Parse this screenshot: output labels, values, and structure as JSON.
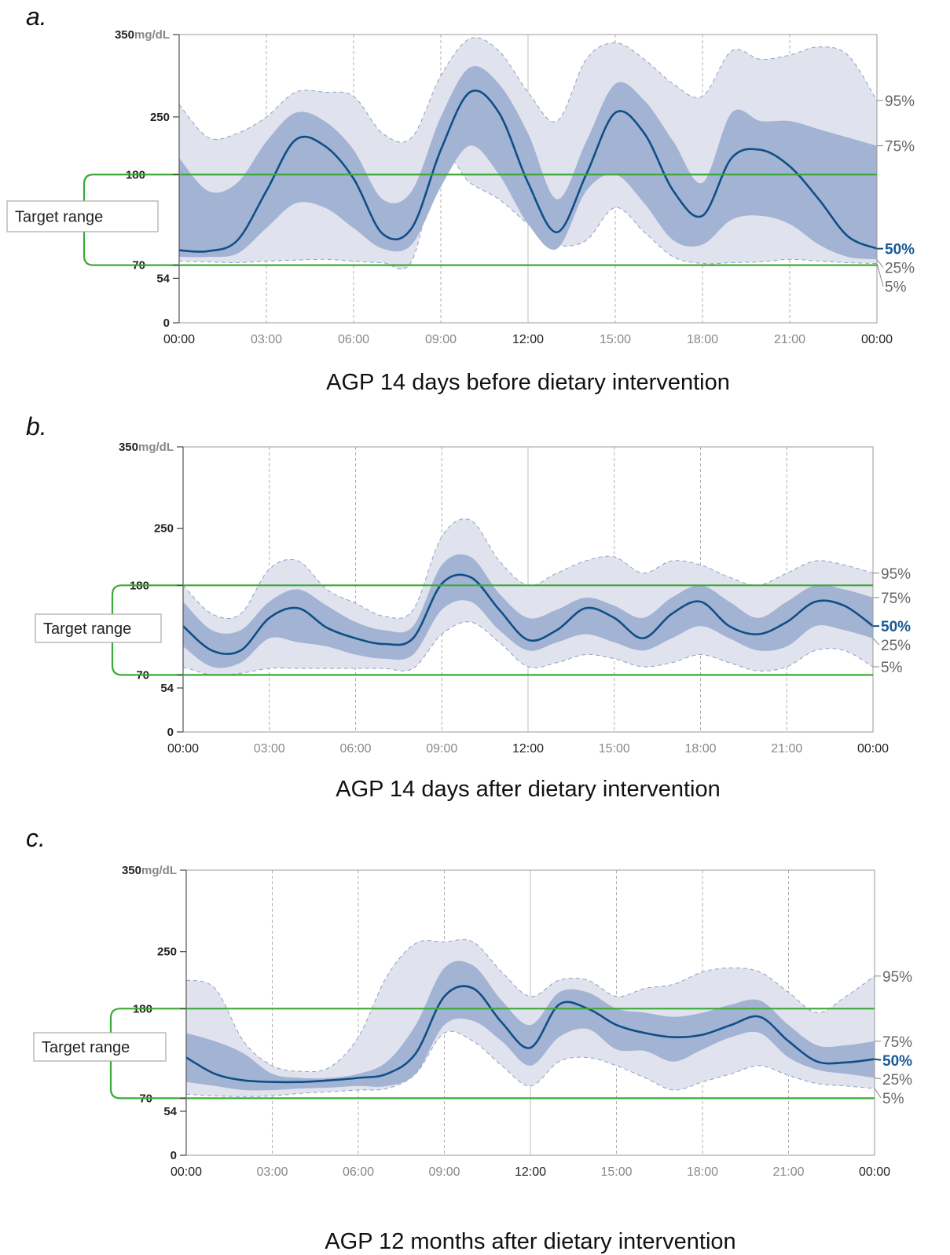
{
  "colors": {
    "band_outer": "#e0e3ed",
    "band_inner": "#a3b3d4",
    "median": "#0f4f86",
    "target": "#3aaa35",
    "median_label": "#1a5a96"
  },
  "y_axis": {
    "unit": "mg/dL",
    "ticks": [
      "350",
      "250",
      "180",
      "70",
      "54",
      "0"
    ]
  },
  "x_axis": {
    "ticks": [
      "00:00",
      "03:00",
      "06:00",
      "09:00",
      "12:00",
      "15:00",
      "18:00",
      "21:00",
      "00:00"
    ]
  },
  "percentile_labels": [
    "95%",
    "75%",
    "50%",
    "25%",
    "5%"
  ],
  "target_label": "Target range",
  "chart_data": [
    {
      "type": "area",
      "panel": "a.",
      "title": "AGP 14 days before dietary intervention",
      "xlabel": "",
      "ylabel": "",
      "x_hours": [
        0,
        1,
        2,
        3,
        4,
        5,
        6,
        7,
        8,
        9,
        10,
        11,
        12,
        13,
        14,
        15,
        16,
        17,
        18,
        19,
        20,
        21,
        22,
        23,
        24
      ],
      "ylim": [
        0,
        350
      ],
      "target_range": [
        70,
        180
      ],
      "p5": [
        75,
        74,
        73,
        75,
        76,
        77,
        75,
        73,
        75,
        200,
        170,
        150,
        120,
        95,
        100,
        140,
        110,
        80,
        72,
        73,
        74,
        77,
        75,
        73,
        72
      ],
      "p25": [
        80,
        80,
        84,
        115,
        145,
        140,
        115,
        90,
        95,
        165,
        215,
        180,
        120,
        90,
        160,
        180,
        145,
        100,
        95,
        125,
        130,
        120,
        95,
        80,
        77
      ],
      "p50": [
        88,
        87,
        100,
        160,
        222,
        215,
        175,
        108,
        115,
        210,
        280,
        255,
        170,
        110,
        180,
        255,
        230,
        160,
        130,
        200,
        210,
        190,
        150,
        105,
        90
      ],
      "p75": [
        200,
        160,
        170,
        220,
        255,
        245,
        210,
        150,
        160,
        250,
        310,
        290,
        230,
        150,
        220,
        290,
        270,
        220,
        170,
        255,
        245,
        245,
        235,
        225,
        215
      ],
      "p95": [
        265,
        225,
        230,
        250,
        280,
        280,
        275,
        230,
        225,
        300,
        345,
        330,
        280,
        245,
        320,
        340,
        320,
        290,
        275,
        330,
        320,
        325,
        335,
        325,
        270
      ]
    },
    {
      "type": "area",
      "panel": "b.",
      "title": "AGP 14 days after dietary intervention",
      "xlabel": "",
      "ylabel": "",
      "x_hours": [
        0,
        1,
        2,
        3,
        4,
        5,
        6,
        7,
        8,
        9,
        10,
        11,
        12,
        13,
        14,
        15,
        16,
        17,
        18,
        19,
        20,
        21,
        22,
        23,
        24
      ],
      "ylim": [
        0,
        350
      ],
      "target_range": [
        70,
        180
      ],
      "p5": [
        80,
        70,
        72,
        78,
        78,
        78,
        78,
        78,
        78,
        120,
        135,
        110,
        80,
        85,
        95,
        90,
        80,
        85,
        95,
        85,
        75,
        80,
        100,
        100,
        80
      ],
      "p25": [
        105,
        80,
        85,
        115,
        110,
        105,
        95,
        90,
        95,
        150,
        160,
        125,
        100,
        110,
        120,
        110,
        100,
        115,
        130,
        115,
        100,
        105,
        130,
        125,
        115
      ],
      "p50": [
        130,
        100,
        100,
        140,
        152,
        128,
        115,
        108,
        115,
        182,
        190,
        150,
        113,
        125,
        152,
        140,
        115,
        145,
        160,
        130,
        120,
        135,
        160,
        155,
        130
      ],
      "p75": [
        160,
        125,
        125,
        160,
        175,
        155,
        135,
        125,
        130,
        205,
        215,
        170,
        140,
        150,
        165,
        155,
        140,
        165,
        180,
        160,
        140,
        160,
        180,
        175,
        165
      ],
      "p95": [
        180,
        145,
        145,
        200,
        210,
        175,
        158,
        142,
        150,
        240,
        260,
        210,
        180,
        195,
        210,
        215,
        195,
        210,
        205,
        190,
        180,
        195,
        210,
        205,
        195
      ]
    },
    {
      "type": "area",
      "panel": "c.",
      "title": "AGP 12 months after dietary intervention",
      "xlabel": "",
      "ylabel": "",
      "x_hours": [
        0,
        1,
        2,
        3,
        4,
        5,
        6,
        7,
        8,
        9,
        10,
        11,
        12,
        13,
        14,
        15,
        16,
        17,
        18,
        19,
        20,
        21,
        22,
        23,
        24
      ],
      "ylim": [
        0,
        350
      ],
      "target_range": [
        70,
        180
      ],
      "p5": [
        75,
        73,
        72,
        73,
        76,
        78,
        80,
        82,
        100,
        150,
        140,
        110,
        85,
        115,
        120,
        110,
        95,
        80,
        90,
        100,
        110,
        98,
        88,
        85,
        82
      ],
      "p25": [
        90,
        85,
        80,
        80,
        82,
        83,
        85,
        85,
        100,
        160,
        165,
        140,
        110,
        145,
        155,
        130,
        128,
        115,
        130,
        145,
        150,
        120,
        105,
        100,
        95
      ],
      "p50": [
        120,
        100,
        92,
        90,
        90,
        92,
        95,
        100,
        125,
        195,
        205,
        163,
        132,
        185,
        180,
        160,
        150,
        145,
        148,
        160,
        170,
        140,
        115,
        114,
        118
      ],
      "p75": [
        150,
        140,
        125,
        100,
        95,
        95,
        100,
        115,
        160,
        230,
        233,
        190,
        160,
        200,
        200,
        180,
        175,
        170,
        175,
        185,
        190,
        160,
        135,
        135,
        140
      ],
      "p95": [
        215,
        205,
        140,
        110,
        103,
        108,
        145,
        220,
        260,
        262,
        262,
        225,
        195,
        215,
        215,
        195,
        205,
        210,
        225,
        230,
        225,
        200,
        175,
        195,
        220
      ]
    }
  ]
}
